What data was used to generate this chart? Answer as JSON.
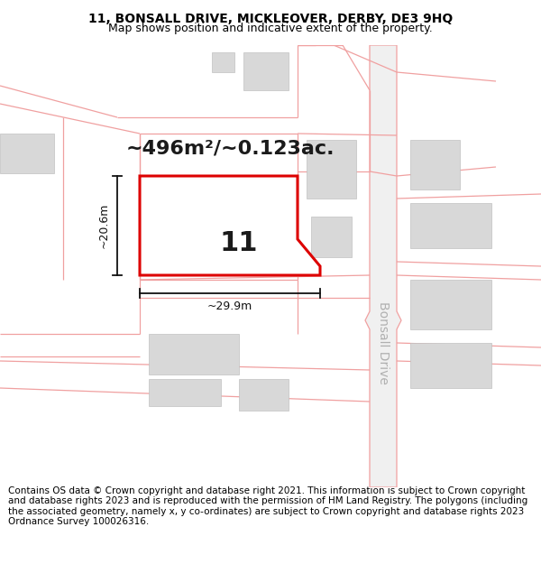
{
  "title_line1": "11, BONSALL DRIVE, MICKLEOVER, DERBY, DE3 9HQ",
  "title_line2": "Map shows position and indicative extent of the property.",
  "footer_text": "Contains OS data © Crown copyright and database right 2021. This information is subject to Crown copyright and database rights 2023 and is reproduced with the permission of HM Land Registry. The polygons (including the associated geometry, namely x, y co-ordinates) are subject to Crown copyright and database rights 2023 Ordnance Survey 100026316.",
  "area_label": "~496m²/~0.123ac.",
  "width_label": "~29.9m",
  "height_label": "~20.6m",
  "plot_number": "11",
  "bg_color": "#ffffff",
  "map_bg": "#ffffff",
  "plot_fill": "#ffffff",
  "plot_edge": "#dd0000",
  "plot_lw": 2.2,
  "building_fill": "#d8d8d8",
  "building_edge": "#c0c0c0",
  "road_color": "#f0a0a0",
  "road_lw": 0.9,
  "dim_color": "#111111",
  "road_label_color": "#b0b0b0",
  "title_fs": 10,
  "subtitle_fs": 9,
  "footer_fs": 7.5,
  "area_fs": 16,
  "num_fs": 22,
  "dim_fs": 9,
  "road_fs": 10
}
